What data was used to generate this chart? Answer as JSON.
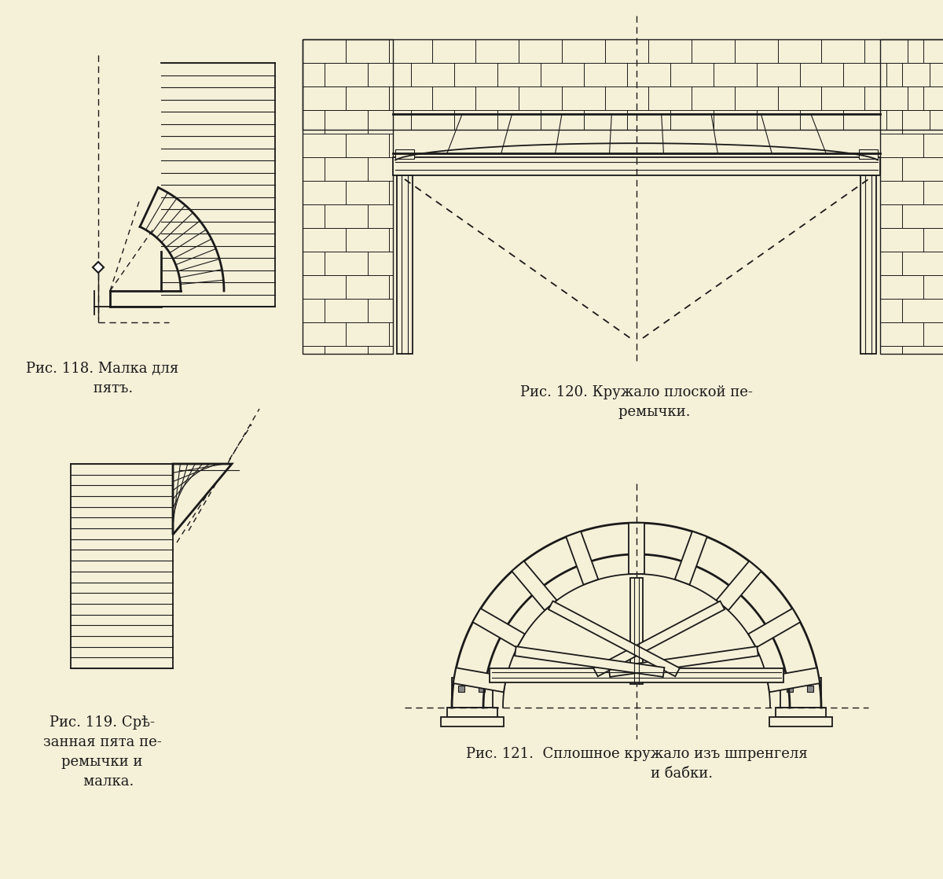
{
  "bg_color": "#f5f0d8",
  "line_color": "#1a1a1a",
  "captions": [
    "Рис. 118. Малка для\n     пятъ.",
    "Рис. 120. Кружало плоской пе-\n        ремычки.",
    "Рис. 119. Срѣ-\nзанная пята пе-\nремычки и\n   малка.",
    "Рис. 121.  Сплошное кружало изъ шпренгеля\n                    и бабки."
  ],
  "figsize": [
    12.0,
    11.18
  ],
  "dpi": 100
}
